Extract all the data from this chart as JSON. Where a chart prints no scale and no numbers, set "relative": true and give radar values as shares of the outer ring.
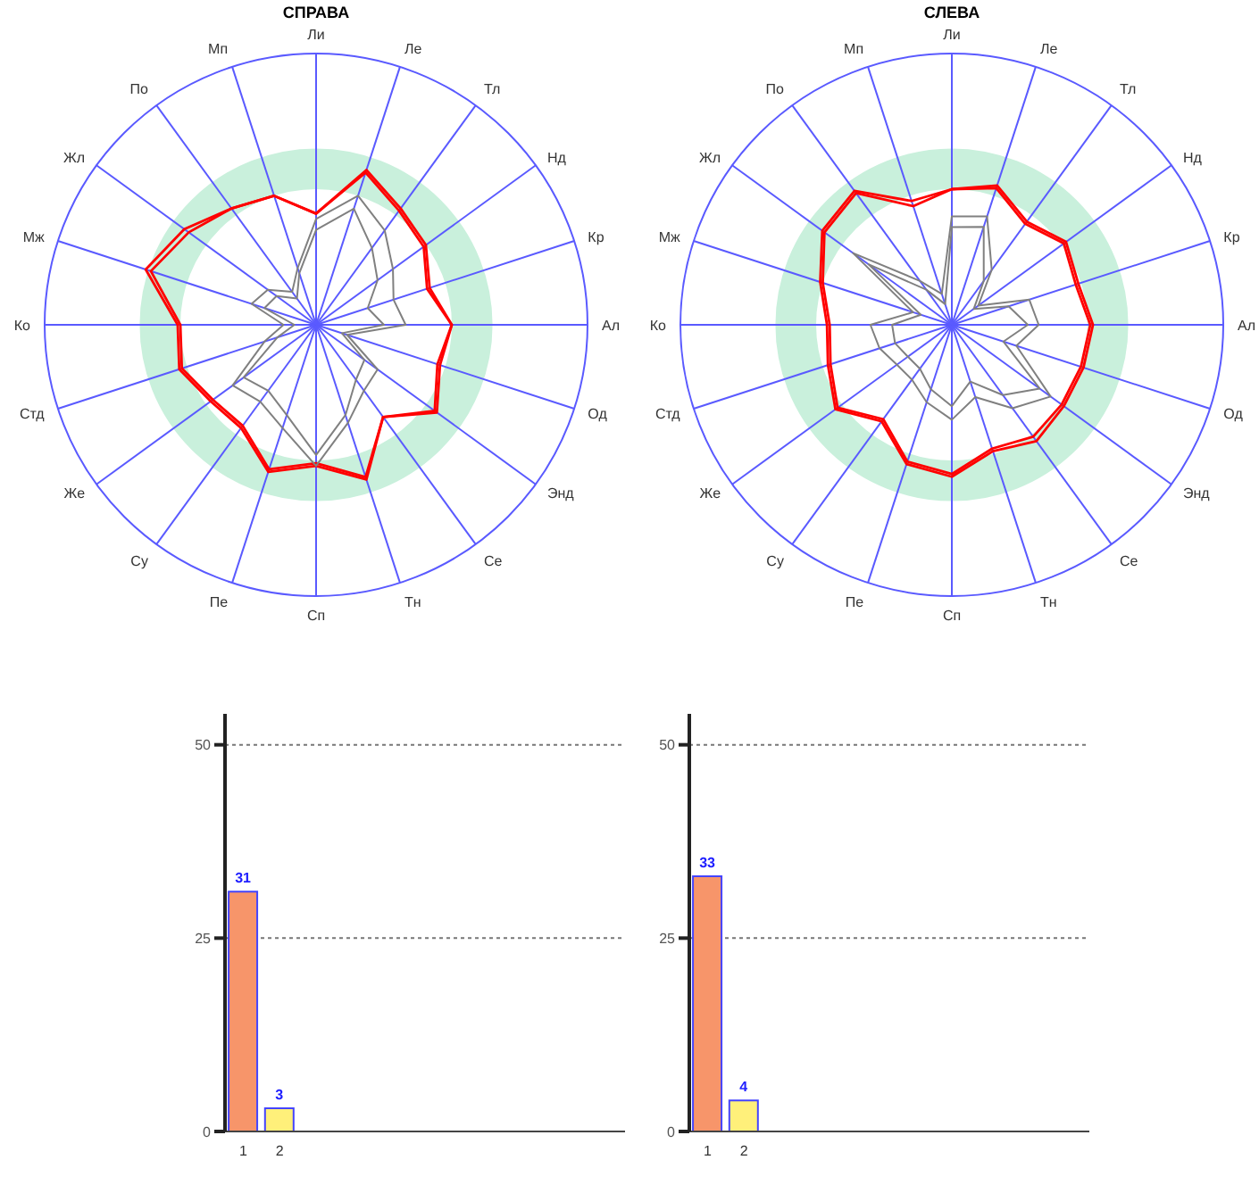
{
  "chart_data": [
    {
      "type": "radar",
      "title": "СПРАВА",
      "relative": true,
      "grid": true,
      "marker": "none",
      "categories": [
        "Ли",
        "Ле",
        "Тл",
        "Нд",
        "Кр",
        "Ал",
        "Од",
        "Энд",
        "Се",
        "Тн",
        "Сп",
        "Пе",
        "Су",
        "Же",
        "Стд",
        "Ко",
        "Мж",
        "Жл",
        "По",
        "Мп"
      ],
      "series": [
        {
          "color": "#ff0000",
          "values": [
            0.41,
            0.6,
            0.53,
            0.5,
            0.44,
            0.5,
            0.48,
            0.55,
            0.42,
            0.6,
            0.52,
            0.57,
            0.47,
            0.48,
            0.53,
            0.51,
            0.66,
            0.6,
            0.53,
            0.5
          ]
        },
        {
          "color": "#ff0000",
          "values": [
            0.41,
            0.59,
            0.52,
            0.49,
            0.43,
            0.5,
            0.47,
            0.54,
            0.42,
            0.59,
            0.51,
            0.56,
            0.46,
            0.47,
            0.52,
            0.5,
            0.64,
            0.58,
            0.53,
            0.5
          ]
        },
        {
          "color": "#808080",
          "values": [
            0.39,
            0.5,
            0.43,
            0.35,
            0.3,
            0.33,
            0.12,
            0.28,
            0.3,
            0.38,
            0.52,
            0.4,
            0.35,
            0.38,
            0.2,
            0.12,
            0.25,
            0.22,
            0.15,
            0.22
          ]
        },
        {
          "color": "#808080",
          "values": [
            0.35,
            0.45,
            0.35,
            0.28,
            0.2,
            0.25,
            0.1,
            0.22,
            0.25,
            0.35,
            0.48,
            0.35,
            0.3,
            0.33,
            0.15,
            0.08,
            0.2,
            0.18,
            0.12,
            0.2
          ]
        }
      ]
    },
    {
      "type": "radar",
      "title": "СЛЕВА",
      "relative": true,
      "grid": true,
      "marker": "none",
      "categories": [
        "Ли",
        "Ле",
        "Тл",
        "Нд",
        "Кр",
        "Ал",
        "Од",
        "Энд",
        "Се",
        "Тн",
        "Сп",
        "Пе",
        "Су",
        "Же",
        "Стд",
        "Ко",
        "Мж",
        "Жл",
        "По",
        "Мп"
      ],
      "series": [
        {
          "color": "#ff0000",
          "values": [
            0.5,
            0.54,
            0.47,
            0.52,
            0.49,
            0.52,
            0.51,
            0.51,
            0.53,
            0.49,
            0.56,
            0.54,
            0.44,
            0.53,
            0.48,
            0.46,
            0.51,
            0.59,
            0.61,
            0.48
          ]
        },
        {
          "color": "#ff0000",
          "values": [
            0.5,
            0.53,
            0.46,
            0.51,
            0.48,
            0.51,
            0.5,
            0.5,
            0.51,
            0.48,
            0.55,
            0.53,
            0.43,
            0.52,
            0.47,
            0.45,
            0.5,
            0.58,
            0.6,
            0.46
          ]
        },
        {
          "color": "#808080",
          "values": [
            0.4,
            0.42,
            0.25,
            0.12,
            0.3,
            0.32,
            0.25,
            0.45,
            0.38,
            0.28,
            0.35,
            0.3,
            0.25,
            0.25,
            0.28,
            0.3,
            0.15,
            0.45,
            0.2,
            0.12
          ]
        },
        {
          "color": "#808080",
          "values": [
            0.36,
            0.38,
            0.2,
            0.1,
            0.22,
            0.28,
            0.2,
            0.4,
            0.32,
            0.22,
            0.3,
            0.25,
            0.2,
            0.2,
            0.22,
            0.22,
            0.12,
            0.38,
            0.16,
            0.08
          ]
        }
      ]
    },
    {
      "type": "bar",
      "categories": [
        "1",
        "2",
        null,
        null,
        null,
        null,
        null,
        null,
        null,
        null,
        null
      ],
      "values": [
        31,
        3,
        null,
        null,
        null,
        null,
        null,
        null,
        null,
        null,
        null
      ],
      "colors": [
        "#f7956a",
        "#fff07a",
        null,
        null,
        null,
        null,
        null,
        null,
        null,
        null,
        null
      ],
      "ylim": [
        0,
        54
      ],
      "yticks": [
        0,
        25,
        50
      ],
      "grid": "y",
      "data_labels": true
    },
    {
      "type": "bar",
      "categories": [
        "1",
        "2",
        null,
        null,
        null,
        null,
        null,
        null,
        null,
        null,
        null
      ],
      "values": [
        33,
        4,
        null,
        null,
        null,
        null,
        null,
        null,
        null,
        null,
        null
      ],
      "colors": [
        "#f7956a",
        "#fff07a",
        null,
        null,
        null,
        null,
        null,
        null,
        null,
        null,
        null
      ],
      "ylim": [
        0,
        54
      ],
      "yticks": [
        0,
        25,
        50
      ],
      "grid": "y",
      "data_labels": true
    }
  ]
}
